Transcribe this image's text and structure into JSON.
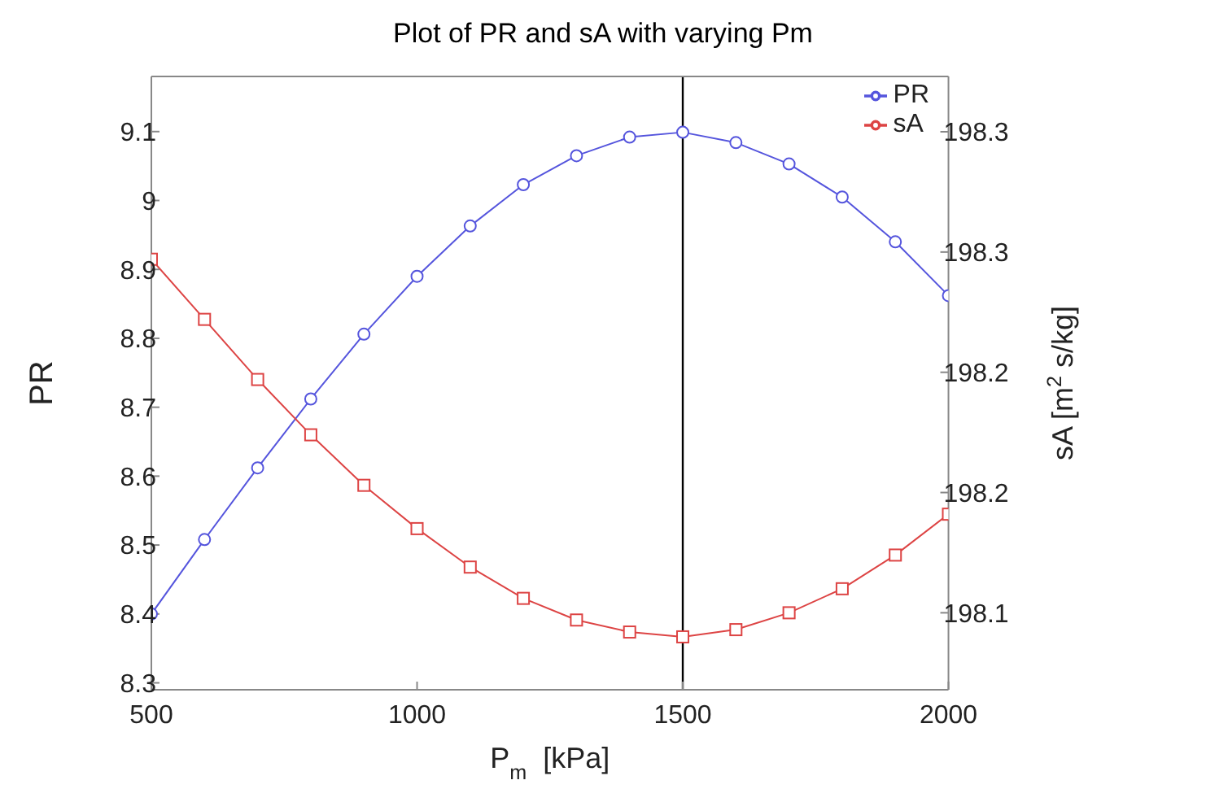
{
  "chart_data": {
    "type": "line",
    "title": "Plot of PR and sA with varying Pm",
    "xlabel": "P$_{m}$  [kPa]",
    "ylabel": "PR",
    "y2label": "sA [m$^{2}$ s/kg]",
    "x": [
      500,
      600,
      700,
      800,
      900,
      1000,
      1100,
      1200,
      1300,
      1400,
      1500,
      1600,
      1700,
      1800,
      1900,
      2000
    ],
    "series": [
      {
        "name": "PR",
        "color": "#5555dd",
        "marker": "circle",
        "values": [
          8.4,
          8.508,
          8.612,
          8.712,
          8.806,
          8.89,
          8.963,
          9.023,
          9.065,
          9.092,
          9.099,
          9.084,
          9.053,
          9.005,
          8.94,
          8.862
        ]
      },
      {
        "name": "sA",
        "color": "#dd4444",
        "marker": "square",
        "axis": "y2",
        "values": [
          198.247,
          198.222,
          198.197,
          198.174,
          198.153,
          198.135,
          198.119,
          198.106,
          198.097,
          198.092,
          198.09,
          198.093,
          198.1,
          198.11,
          198.124,
          198.141
        ]
      }
    ],
    "xlim": [
      500,
      2000
    ],
    "xticks": [
      500,
      1000,
      1500,
      2000
    ],
    "ylim": [
      8.29,
      9.18
    ],
    "yticks": [
      8.3,
      8.4,
      8.5,
      8.6,
      8.7,
      8.8,
      8.9,
      9,
      9.1
    ],
    "y2lim": [
      198.068,
      198.323
    ],
    "y2ticks": [
      {
        "value": 198.1,
        "label": "198.1"
      },
      {
        "value": 198.15,
        "label": "198.2"
      },
      {
        "value": 198.2,
        "label": "198.2"
      },
      {
        "value": 198.25,
        "label": "198.3"
      },
      {
        "value": 198.3,
        "label": "198.3"
      }
    ],
    "ref_lines": [
      {
        "axis": "x",
        "value": 1500,
        "color": "#000000"
      }
    ],
    "grid": false,
    "legend": "top right",
    "line_style": "solid"
  }
}
